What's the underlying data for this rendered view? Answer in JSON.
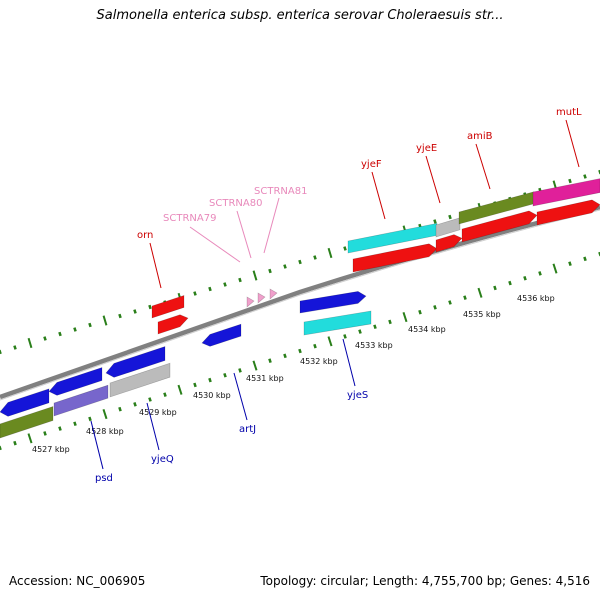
{
  "title": "Salmonella enterica subsp. enterica serovar Choleraesuis str...",
  "footer": {
    "accession": "Accession: NC_006905",
    "summary": "Topology: circular; Length: 4,755,700 bp; Genes: 4,516"
  },
  "colors": {
    "backbone": "#808080",
    "tick_major": "#2a7f1a",
    "tick_minor": "#2a7f1a",
    "label_top": "#cc0000",
    "label_bottom": "#0000aa",
    "label_rna": "#e889bb",
    "red": "#ee1111",
    "blue": "#1515d8",
    "cyan": "#22dcdc",
    "olive": "#6a8a20",
    "grey": "#bbbbbb",
    "purple": "#7766cc",
    "magenta": "#e0209a",
    "pink": "#f0a0cc"
  },
  "scale_labels": [
    "4527 kbp",
    "4528 kbp",
    "4529 kbp",
    "4530 kbp",
    "4531 kbp",
    "4532 kbp",
    "4533 kbp",
    "4534 kbp",
    "4535 kbp",
    "4536 kbp"
  ],
  "gene_labels_top": [
    "orn",
    "yjeF",
    "yjeE",
    "amiB",
    "mutL"
  ],
  "rna_labels": [
    "SCTRNA79",
    "SCTRNA80",
    "SCTRNA81"
  ],
  "gene_labels_bottom": [
    "psd",
    "yjeQ",
    "artJ",
    "yjeS"
  ]
}
